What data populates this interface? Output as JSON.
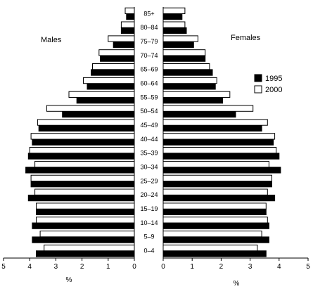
{
  "chart_data": {
    "type": "bar",
    "orientation": "horizontal",
    "layout": "population-pyramid",
    "categories": [
      "0–4",
      "5–9",
      "10–14",
      "15–19",
      "20–24",
      "25–29",
      "30–34",
      "35–39",
      "40–44",
      "45–49",
      "50–54",
      "55–59",
      "60–64",
      "65–69",
      "70–74",
      "75–79",
      "80–84",
      "85+"
    ],
    "panels": [
      {
        "label": "Males",
        "xlabel": "%",
        "xlim": [
          5,
          0
        ],
        "xticks": [
          "5",
          "4",
          "3",
          "2",
          "1",
          "0"
        ],
        "series": [
          {
            "name": "1995",
            "values": [
              3.75,
              3.9,
              3.9,
              3.75,
              4.05,
              3.95,
              4.15,
              4.05,
              3.9,
              3.65,
              2.75,
              2.2,
              1.8,
              1.65,
              1.3,
              0.8,
              0.5,
              0.3
            ]
          },
          {
            "name": "2000",
            "values": [
              3.45,
              3.6,
              3.75,
              3.75,
              3.8,
              3.95,
              3.8,
              4.0,
              3.95,
              3.7,
              3.35,
              2.5,
              1.95,
              1.6,
              1.35,
              1.0,
              0.5,
              0.35
            ]
          }
        ]
      },
      {
        "label": "Females",
        "xlabel": "%",
        "xlim": [
          0,
          5
        ],
        "xticks": [
          "0",
          "1",
          "2",
          "3",
          "4",
          "5"
        ],
        "series": [
          {
            "name": "1995",
            "values": [
              3.55,
              3.65,
              3.65,
              3.55,
              3.85,
              3.75,
              4.05,
              4.0,
              3.8,
              3.4,
              2.5,
              2.05,
              1.8,
              1.7,
              1.45,
              1.05,
              0.8,
              0.65
            ]
          },
          {
            "name": "2000",
            "values": [
              3.25,
              3.4,
              3.6,
              3.55,
              3.6,
              3.75,
              3.65,
              3.9,
              3.85,
              3.6,
              3.1,
              2.3,
              1.85,
              1.6,
              1.45,
              1.2,
              0.75,
              0.75
            ]
          }
        ]
      }
    ],
    "legend": {
      "placement": "right",
      "items": [
        {
          "name": "1995",
          "color": "#000000"
        },
        {
          "name": "2000",
          "color": "#ffffff"
        }
      ]
    },
    "grid": false,
    "colors": {
      "1995": "#000000",
      "2000": "#ffffff",
      "outline": "#000000"
    }
  }
}
